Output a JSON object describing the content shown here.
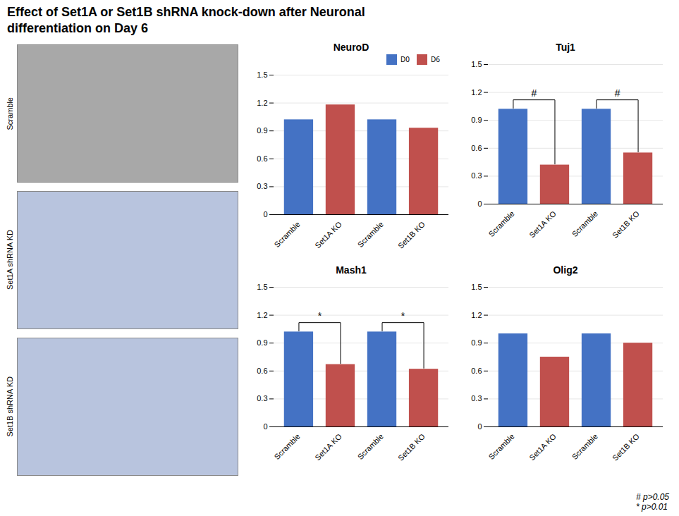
{
  "title": "Effect of Set1A or Set1B shRNA knock-down after Neuronal\ndifferentiation on Day 6",
  "images": [
    {
      "label": "Scramble",
      "color": "#a8a8a8"
    },
    {
      "label": "Set1A shRNA KD",
      "color": "#b8c4de"
    },
    {
      "label": "Set1B shRNA KD",
      "color": "#b8c4de"
    }
  ],
  "annotations": [
    "# p>0.05",
    "* p>0.01"
  ],
  "chart_data": [
    {
      "type": "bar",
      "title": "NeuroD",
      "categories": [
        "Scramble",
        "Set1A KO",
        "Scramble",
        "Set1B KO"
      ],
      "series": [
        {
          "name": "D0",
          "color": "#4472C4",
          "values": [
            1.02,
            null,
            1.02,
            null
          ]
        },
        {
          "name": "D6",
          "color": "#C0504D",
          "values": [
            null,
            1.18,
            null,
            0.93
          ]
        }
      ],
      "significance": [],
      "ylim": [
        0,
        1.5
      ],
      "yticks": [
        0,
        0.3,
        0.6,
        0.9,
        1.2,
        1.5
      ],
      "grid": true,
      "legend": "upper right"
    },
    {
      "type": "bar",
      "title": "Tuj1",
      "categories": [
        "Scramble",
        "Set1A KO",
        "Scramble",
        "Set1B KO"
      ],
      "series": [
        {
          "name": "D0",
          "color": "#4472C4",
          "values": [
            1.02,
            null,
            1.02,
            null
          ]
        },
        {
          "name": "D6",
          "color": "#C0504D",
          "values": [
            null,
            0.42,
            null,
            0.55
          ]
        }
      ],
      "significance": [
        {
          "label": "#",
          "bars": [
            0,
            1
          ]
        },
        {
          "label": "#",
          "bars": [
            2,
            3
          ]
        }
      ],
      "ylim": [
        0,
        1.5
      ],
      "yticks": [
        0,
        0.3,
        0.6,
        0.9,
        1.2,
        1.5
      ],
      "grid": true,
      "legend": false
    },
    {
      "type": "bar",
      "title": "Mash1",
      "categories": [
        "Scramble",
        "Set1A KO",
        "Scramble",
        "Set1B KO"
      ],
      "series": [
        {
          "name": "D0",
          "color": "#4472C4",
          "values": [
            1.02,
            null,
            1.02,
            null
          ]
        },
        {
          "name": "D6",
          "color": "#C0504D",
          "values": [
            null,
            0.67,
            null,
            0.62
          ]
        }
      ],
      "significance": [
        {
          "label": "*",
          "bars": [
            0,
            1
          ]
        },
        {
          "label": "*",
          "bars": [
            2,
            3
          ]
        }
      ],
      "ylim": [
        0,
        1.5
      ],
      "yticks": [
        0,
        0.3,
        0.6,
        0.9,
        1.2,
        1.5
      ],
      "grid": true,
      "legend": false
    },
    {
      "type": "bar",
      "title": "Olig2",
      "categories": [
        "Scramble",
        "Set1A KO",
        "Scramble",
        "Set1B KO"
      ],
      "series": [
        {
          "name": "D0",
          "color": "#4472C4",
          "values": [
            1.0,
            null,
            1.0,
            null
          ]
        },
        {
          "name": "D6",
          "color": "#C0504D",
          "values": [
            null,
            0.75,
            null,
            0.9
          ]
        }
      ],
      "significance": [],
      "ylim": [
        0,
        1.5
      ],
      "yticks": [
        0,
        0.3,
        0.6,
        0.9,
        1.2,
        1.5
      ],
      "grid": true,
      "legend": false
    }
  ]
}
